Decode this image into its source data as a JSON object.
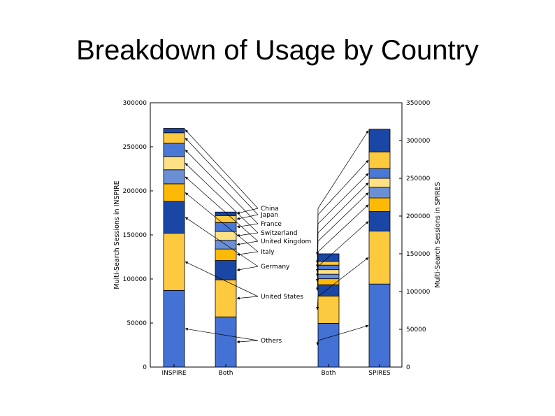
{
  "slide": {
    "title": "Breakdown of Usage by Country"
  },
  "chart_data": {
    "type": "bar",
    "stacked": true,
    "title": "",
    "categories": [
      "INSPIRE",
      "Both",
      "Both",
      "SPIRES"
    ],
    "axes": {
      "left": {
        "label": "Multi-Search Sessions in INSPIRE",
        "ylim": [
          0,
          300000
        ],
        "ticks": [
          "0",
          "50000",
          "100000",
          "150000",
          "200000",
          "250000",
          "300000"
        ],
        "tick_values": [
          0,
          50000,
          100000,
          150000,
          200000,
          250000,
          300000
        ]
      },
      "right": {
        "label": "Multi-Search Sessions in SPIRES",
        "ylim": [
          0,
          350000
        ],
        "ticks": [
          "0",
          "50000",
          "100000",
          "150000",
          "200000",
          "250000",
          "300000",
          "350000"
        ],
        "tick_values": [
          0,
          50000,
          100000,
          150000,
          200000,
          250000,
          300000,
          350000
        ]
      }
    },
    "bar_axis": [
      "left",
      "left",
      "right",
      "right"
    ],
    "series": [
      {
        "name": "Others",
        "values": [
          87000,
          57000,
          58000,
          110000
        ],
        "color": "#4472d4"
      },
      {
        "name": "United States",
        "values": [
          65000,
          42000,
          36000,
          70000
        ],
        "color": "#fdc93e"
      },
      {
        "name": "Germany",
        "values": [
          36000,
          22000,
          15000,
          26000
        ],
        "color": "#1a46a6"
      },
      {
        "name": "Italy",
        "values": [
          20000,
          13000,
          8000,
          18000
        ],
        "color": "#fcba06"
      },
      {
        "name": "United Kingdom",
        "values": [
          16000,
          10000,
          6000,
          14000
        ],
        "color": "#6b8fd4"
      },
      {
        "name": "Switzerland",
        "values": [
          15000,
          10000,
          6000,
          12000
        ],
        "color": "#fde184"
      },
      {
        "name": "France",
        "values": [
          15000,
          10000,
          6000,
          13000
        ],
        "color": "#4a78d6"
      },
      {
        "name": "Japan",
        "values": [
          12000,
          8000,
          5000,
          22000
        ],
        "color": "#fdc93e"
      },
      {
        "name": "China",
        "values": [
          5000,
          4000,
          10000,
          30000
        ],
        "color": "#1a46a6"
      }
    ],
    "legend": "arrow labels between the two center bars",
    "grid": false
  }
}
